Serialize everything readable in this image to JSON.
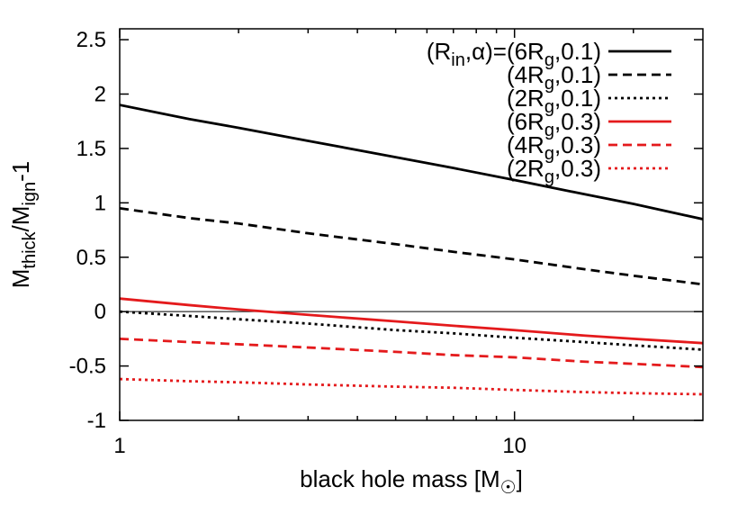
{
  "chart_data": {
    "type": "line",
    "x_scale": "log",
    "y_scale": "linear",
    "xlim": [
      1,
      30
    ],
    "ylim": [
      -1,
      2.6
    ],
    "x_major_ticks": [
      1,
      10
    ],
    "xtick_labels": [
      "1",
      "10"
    ],
    "x_minor_ticks": [
      2,
      3,
      4,
      5,
      6,
      7,
      8,
      9,
      20
    ],
    "yticks": [
      -1,
      -0.5,
      0,
      0.5,
      1,
      1.5,
      2,
      2.5
    ],
    "ytick_labels": [
      "-1",
      "-0.5",
      "0",
      "0.5",
      "1",
      "1.5",
      "2",
      "2.5"
    ],
    "xlabel": [
      {
        "text": "black hole mass [M"
      },
      {
        "text": "☉",
        "sub": true
      },
      {
        "text": "]"
      }
    ],
    "ylabel": [
      {
        "text": "M"
      },
      {
        "text": "thick",
        "sub": true
      },
      {
        "text": "/M"
      },
      {
        "text": "ign",
        "sub": true
      },
      {
        "text": "-1"
      }
    ],
    "grid": false,
    "legend_position": "top-right",
    "horizontal_reference_line": 0,
    "x": [
      1,
      1.5,
      2,
      3,
      5,
      7,
      10,
      15,
      20,
      30
    ],
    "series": [
      {
        "name": [
          {
            "text": "(R"
          },
          {
            "text": "in",
            "sub": true
          },
          {
            "text": ",α)=(6R"
          },
          {
            "text": "g",
            "sub": true
          },
          {
            "text": ",0.1)"
          }
        ],
        "color": "#000000",
        "line_style": "solid",
        "values": [
          1.9,
          1.77,
          1.69,
          1.57,
          1.42,
          1.32,
          1.21,
          1.08,
          0.99,
          0.85
        ]
      },
      {
        "name": [
          {
            "text": "(4R"
          },
          {
            "text": "g",
            "sub": true
          },
          {
            "text": ",0.1)"
          }
        ],
        "color": "#000000",
        "line_style": "dashed",
        "values": [
          0.95,
          0.86,
          0.81,
          0.72,
          0.62,
          0.55,
          0.48,
          0.39,
          0.33,
          0.25
        ]
      },
      {
        "name": [
          {
            "text": "(2R"
          },
          {
            "text": "g",
            "sub": true
          },
          {
            "text": ",0.1)"
          }
        ],
        "color": "#000000",
        "line_style": "dotted",
        "values": [
          0.0,
          -0.04,
          -0.07,
          -0.11,
          -0.17,
          -0.2,
          -0.24,
          -0.28,
          -0.31,
          -0.35
        ]
      },
      {
        "name": [
          {
            "text": "(6R"
          },
          {
            "text": "g",
            "sub": true
          },
          {
            "text": ",0.3)"
          }
        ],
        "color": "#e41a1c",
        "line_style": "solid",
        "values": [
          0.12,
          0.06,
          0.02,
          -0.03,
          -0.09,
          -0.13,
          -0.17,
          -0.22,
          -0.25,
          -0.29
        ]
      },
      {
        "name": [
          {
            "text": "(4R"
          },
          {
            "text": "g",
            "sub": true
          },
          {
            "text": ",0.3)"
          }
        ],
        "color": "#e41a1c",
        "line_style": "dashed",
        "values": [
          -0.25,
          -0.28,
          -0.3,
          -0.33,
          -0.37,
          -0.4,
          -0.42,
          -0.46,
          -0.48,
          -0.51
        ]
      },
      {
        "name": [
          {
            "text": "(2R"
          },
          {
            "text": "g",
            "sub": true
          },
          {
            "text": ",0.3)"
          }
        ],
        "color": "#e41a1c",
        "line_style": "dotted",
        "values": [
          -0.62,
          -0.64,
          -0.65,
          -0.67,
          -0.69,
          -0.7,
          -0.72,
          -0.74,
          -0.75,
          -0.76
        ]
      }
    ]
  }
}
